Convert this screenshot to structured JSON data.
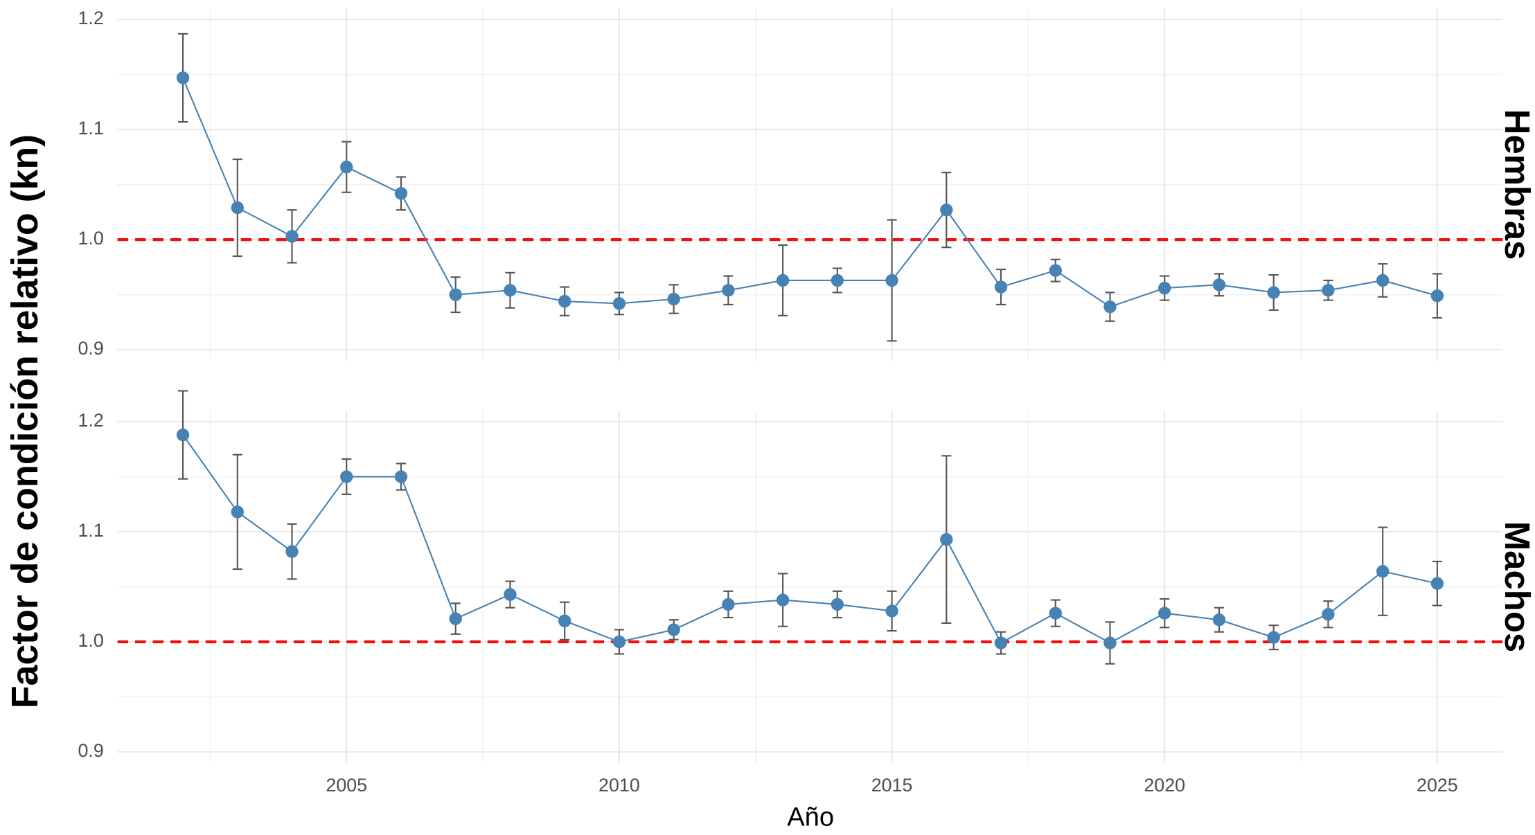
{
  "chart_data": {
    "type": "line",
    "y_label": "Factor de condición relativo (kn)",
    "x_label": "Año",
    "x": [
      2002,
      2003,
      2004,
      2005,
      2006,
      2007,
      2008,
      2009,
      2010,
      2011,
      2012,
      2013,
      2014,
      2015,
      2016,
      2017,
      2018,
      2019,
      2020,
      2021,
      2022,
      2023,
      2024,
      2025
    ],
    "xlim": [
      2000.8,
      2026.2
    ],
    "xticks": [
      2005,
      2010,
      2015,
      2020,
      2025
    ],
    "ylim": [
      0.89,
      1.21
    ],
    "yticks": [
      0.9,
      {
        "value": 1.0,
        "label": "1.0"
      },
      1.1,
      1.2
    ],
    "grid": true,
    "color": "#4682b4",
    "error_color": "#555555",
    "hline": 1,
    "hline_color": "#ee1111",
    "panels": [
      {
        "name": "Hembras",
        "values": [
          1.147,
          1.029,
          1.003,
          1.066,
          1.042,
          0.95,
          0.954,
          0.944,
          0.942,
          0.946,
          0.954,
          0.963,
          0.963,
          0.963,
          1.027,
          0.957,
          0.972,
          0.939,
          0.956,
          0.959,
          0.952,
          0.954,
          0.963,
          0.949
        ],
        "errors": [
          0.04,
          0.044,
          0.024,
          0.023,
          0.015,
          0.016,
          0.016,
          0.013,
          0.01,
          0.013,
          0.013,
          0.032,
          0.011,
          0.055,
          0.034,
          0.016,
          0.01,
          0.013,
          0.011,
          0.01,
          0.016,
          0.009,
          0.015,
          0.02
        ]
      },
      {
        "name": "Machos",
        "values": [
          1.188,
          1.118,
          1.082,
          1.15,
          1.15,
          1.021,
          1.043,
          1.019,
          1.0,
          1.011,
          1.034,
          1.038,
          1.034,
          1.028,
          1.093,
          0.999,
          1.026,
          0.999,
          1.026,
          1.02,
          1.004,
          1.025,
          1.064,
          1.053
        ],
        "errors": [
          0.04,
          0.052,
          0.025,
          0.016,
          0.012,
          0.014,
          0.012,
          0.017,
          0.011,
          0.009,
          0.012,
          0.024,
          0.012,
          0.018,
          0.076,
          0.01,
          0.012,
          0.019,
          0.013,
          0.011,
          0.011,
          0.012,
          0.04,
          0.02
        ]
      }
    ]
  }
}
